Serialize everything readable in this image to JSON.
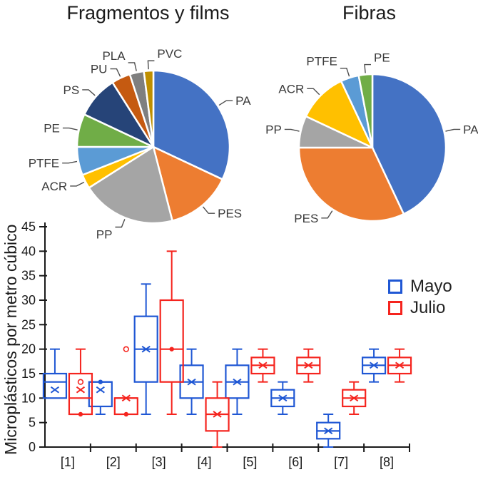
{
  "chart_data": [
    {
      "id": "pie-fragments",
      "type": "pie",
      "title": "Fragmentos y films",
      "unit": "percent",
      "start_angle_deg": 0,
      "labels": [
        "PA",
        "PES",
        "PP",
        "ACR",
        "PTFE",
        "PE",
        "PS",
        "PU",
        "PLA",
        "PVC"
      ],
      "values": [
        32,
        14,
        20,
        3,
        6,
        7,
        9,
        4,
        3,
        2
      ],
      "colors": [
        "#4472C4",
        "#ED7D31",
        "#A5A5A5",
        "#FFC000",
        "#5B9BD5",
        "#70AD47",
        "#264478",
        "#C55A11",
        "#7F7F7F",
        "#BF8F00"
      ],
      "label_color": "#3a3a3a",
      "leader_line_color": "#4d4d4d"
    },
    {
      "id": "pie-fibers",
      "type": "pie",
      "title": "Fibras",
      "unit": "percent",
      "start_angle_deg": 0,
      "labels": [
        "PA",
        "PES",
        "PP",
        "ACR",
        "PTFE",
        "PE"
      ],
      "values": [
        43,
        32,
        7,
        11,
        4,
        3
      ],
      "colors": [
        "#4472C4",
        "#ED7D31",
        "#A5A5A5",
        "#FFC000",
        "#5B9BD5",
        "#70AD47"
      ],
      "label_color": "#3a3a3a",
      "leader_line_color": "#4d4d4d"
    },
    {
      "id": "boxplot-months",
      "type": "boxplot",
      "ylabel": "Microplásticos por metro cúbico",
      "ylim": [
        0,
        45
      ],
      "yticks": [
        0,
        5,
        10,
        15,
        20,
        25,
        30,
        35,
        40,
        45
      ],
      "categories": [
        "[1]",
        "[2]",
        "[3]",
        "[4]",
        "[5]",
        "[6]",
        "[7]",
        "[8]"
      ],
      "grid": false,
      "legend_position": "top-right",
      "axis_color": "#1a1a1a",
      "series": [
        {
          "name": "Mayo",
          "color": "#1F57D4",
          "boxes": [
            {
              "q1": 10,
              "q3": 15,
              "median": 13.3,
              "mean": 11.7,
              "whisker_low": 10,
              "whisker_high": 20
            },
            {
              "q1": 8.3,
              "q3": 13.3,
              "median": 13.3,
              "mean": 11.7,
              "whisker_low": 6.7,
              "whisker_high": 13.3,
              "points": [
                13.3
              ]
            },
            {
              "q1": 13.3,
              "q3": 26.7,
              "median": 20,
              "mean": 20,
              "whisker_low": 6.7,
              "whisker_high": 33.3
            },
            {
              "q1": 10,
              "q3": 16.7,
              "median": 13.3,
              "mean": 13.3,
              "whisker_low": 6.7,
              "whisker_high": 20
            },
            {
              "q1": 10,
              "q3": 16.7,
              "median": 13.3,
              "mean": 13.3,
              "whisker_low": 6.7,
              "whisker_high": 20
            },
            {
              "q1": 8.3,
              "q3": 11.7,
              "median": 10,
              "mean": 10,
              "whisker_low": 6.7,
              "whisker_high": 13.3
            },
            {
              "q1": 1.7,
              "q3": 5,
              "median": 3.3,
              "mean": 3.3,
              "whisker_low": 0,
              "whisker_high": 6.7
            },
            {
              "q1": 15,
              "q3": 18.3,
              "median": 16.7,
              "mean": 16.7,
              "whisker_low": 13.3,
              "whisker_high": 20
            }
          ]
        },
        {
          "name": "Julio",
          "color": "#F5241E",
          "boxes": [
            {
              "q1": 6.7,
              "q3": 15,
              "median": 10,
              "mean": 11.7,
              "whisker_low": 6.7,
              "whisker_high": 20,
              "points": [
                6.7
              ],
              "outliers": [
                13.3
              ]
            },
            {
              "q1": 6.7,
              "q3": 10,
              "median": 10,
              "mean": 10,
              "whisker_low": 6.7,
              "whisker_high": 10,
              "points": [
                6.7
              ],
              "outliers": [
                20
              ]
            },
            {
              "q1": 13.3,
              "q3": 30,
              "median": 20,
              "mean": null,
              "whisker_low": 6.7,
              "whisker_high": 40,
              "points": [
                20
              ]
            },
            {
              "q1": 3.3,
              "q3": 10,
              "median": 6.7,
              "mean": 6.7,
              "whisker_low": 0,
              "whisker_high": 13.3
            },
            {
              "q1": 15,
              "q3": 18.3,
              "median": 16.7,
              "mean": 16.7,
              "whisker_low": 13.3,
              "whisker_high": 20
            },
            {
              "q1": 15,
              "q3": 18.3,
              "median": 16.7,
              "mean": 16.7,
              "whisker_low": 13.3,
              "whisker_high": 20
            },
            {
              "q1": 8.3,
              "q3": 11.7,
              "median": 10,
              "mean": 10,
              "whisker_low": 6.7,
              "whisker_high": 13.3
            },
            {
              "q1": 15,
              "q3": 18.3,
              "median": 16.7,
              "mean": 16.7,
              "whisker_low": 13.3,
              "whisker_high": 20
            }
          ]
        }
      ]
    }
  ]
}
